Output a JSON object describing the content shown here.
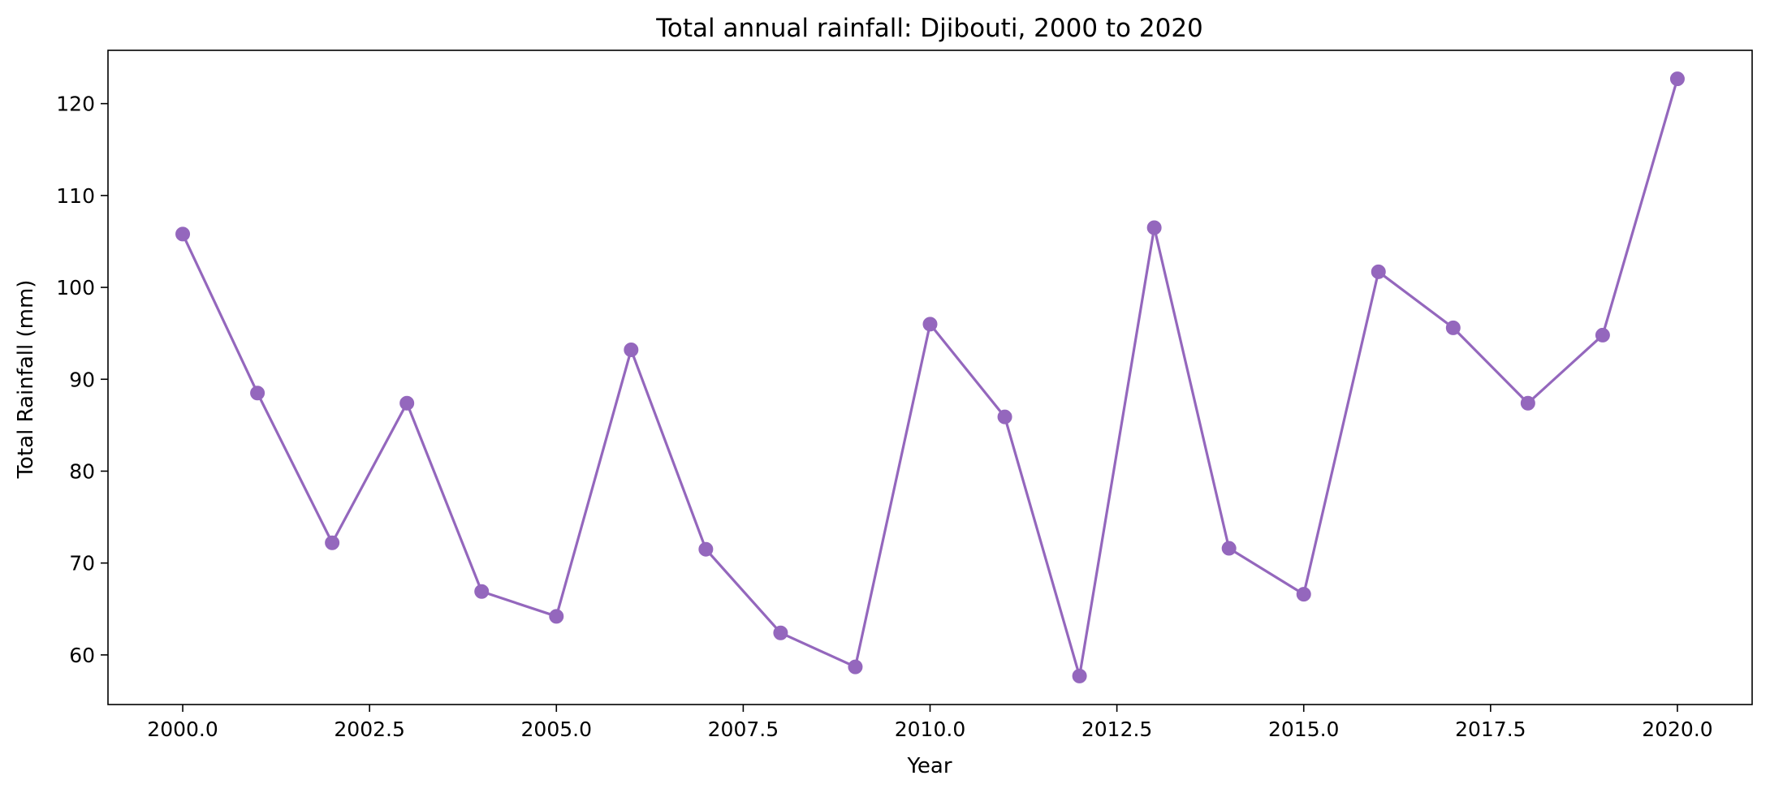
{
  "chart_data": {
    "type": "line",
    "title": "Total annual rainfall: Djibouti, 2000 to 2020",
    "xlabel": "Year",
    "ylabel": "Total Rainfall (mm)",
    "xlim": [
      1999,
      2021
    ],
    "ylim": [
      54.6,
      125.8
    ],
    "x_ticks": [
      2000.0,
      2002.5,
      2005.0,
      2007.5,
      2010.0,
      2012.5,
      2015.0,
      2017.5,
      2020.0
    ],
    "x_tick_labels": [
      "2000.0",
      "2002.5",
      "2005.0",
      "2007.5",
      "2010.0",
      "2012.5",
      "2015.0",
      "2017.5",
      "2020.0"
    ],
    "y_ticks": [
      60,
      70,
      80,
      90,
      100,
      110,
      120
    ],
    "y_tick_labels": [
      "60",
      "70",
      "80",
      "90",
      "100",
      "110",
      "120"
    ],
    "grid": false,
    "legend": "none",
    "series": [
      {
        "color": "#9467bd",
        "marker": "circle",
        "x": [
          2000,
          2001,
          2002,
          2003,
          2004,
          2005,
          2006,
          2007,
          2008,
          2009,
          2010,
          2011,
          2012,
          2013,
          2014,
          2015,
          2016,
          2017,
          2018,
          2019,
          2020
        ],
        "values": [
          105.8,
          88.5,
          72.2,
          87.4,
          66.9,
          64.2,
          93.2,
          71.5,
          62.4,
          58.7,
          96.0,
          85.9,
          57.7,
          106.5,
          71.6,
          66.6,
          101.7,
          95.6,
          87.4,
          94.8,
          122.7
        ]
      }
    ]
  }
}
